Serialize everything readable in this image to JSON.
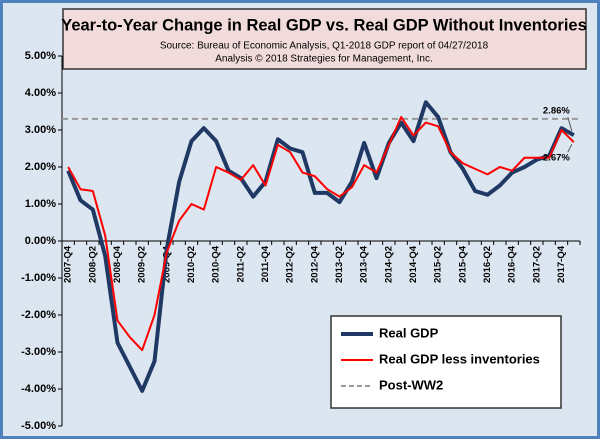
{
  "chart_data": {
    "type": "line",
    "title": "Year-to-Year Change in Real GDP vs. Real GDP Without Inventories",
    "subtitle": [
      "Source: Bureau of Economic Analysis, Q1-2018 GDP report of 04/27/2018",
      "Analysis © 2018 Strategies for Management, Inc."
    ],
    "categories": [
      "2007-Q4",
      null,
      "2008-Q2",
      null,
      "2008-Q4",
      null,
      "2009-Q2",
      null,
      "2009-Q4",
      null,
      "2010-Q2",
      null,
      "2010-Q4",
      null,
      "2011-Q2",
      null,
      "2011-Q4",
      null,
      "2012-Q2",
      null,
      "2012-Q4",
      null,
      "2013-Q2",
      null,
      "2013-Q4",
      null,
      "2014-Q2",
      null,
      "2014-Q4",
      null,
      "2015-Q2",
      null,
      "2015-Q4",
      null,
      "2016-Q2",
      null,
      "2016-Q4",
      null,
      "2017-Q2",
      null,
      "2017-Q4",
      null
    ],
    "series": [
      {
        "name": "Real GDP",
        "color": "#1f3864",
        "values": [
          1.9,
          1.1,
          0.85,
          -0.4,
          -2.75,
          -3.4,
          -4.05,
          -3.25,
          -0.2,
          1.6,
          2.7,
          3.05,
          2.7,
          1.9,
          1.7,
          1.2,
          1.6,
          2.75,
          2.5,
          2.4,
          1.3,
          1.3,
          1.05,
          1.6,
          2.65,
          1.7,
          2.65,
          3.2,
          2.7,
          3.75,
          3.35,
          2.4,
          1.95,
          1.35,
          1.25,
          1.5,
          1.85,
          2.0,
          2.2,
          2.3,
          3.05,
          2.86
        ],
        "value_labels": [
          null,
          null,
          null,
          null,
          null,
          null,
          null,
          null,
          null,
          null,
          null,
          null,
          null,
          null,
          null,
          null,
          null,
          null,
          null,
          null,
          null,
          null,
          null,
          null,
          null,
          null,
          null,
          null,
          null,
          null,
          null,
          null,
          null,
          null,
          null,
          null,
          null,
          null,
          null,
          null,
          null,
          "2.86%"
        ]
      },
      {
        "name": "Real GDP less inventories",
        "color": "#ff0000",
        "values": [
          2.0,
          1.4,
          1.35,
          0.15,
          -2.15,
          -2.6,
          -2.95,
          -2.0,
          -0.3,
          0.55,
          1.0,
          0.85,
          2.0,
          1.85,
          1.65,
          2.05,
          1.5,
          2.6,
          2.4,
          1.85,
          1.75,
          1.4,
          1.2,
          1.45,
          2.05,
          1.85,
          2.6,
          3.35,
          2.85,
          3.2,
          3.1,
          2.4,
          2.1,
          1.95,
          1.8,
          2.0,
          1.9,
          2.25,
          2.25,
          2.25,
          3.0,
          2.67
        ],
        "value_labels": [
          null,
          null,
          null,
          null,
          null,
          null,
          null,
          null,
          null,
          null,
          null,
          null,
          null,
          null,
          null,
          null,
          null,
          null,
          null,
          null,
          null,
          null,
          null,
          null,
          null,
          null,
          null,
          null,
          null,
          null,
          null,
          null,
          null,
          null,
          null,
          null,
          null,
          null,
          null,
          null,
          null,
          "2.67%"
        ]
      }
    ],
    "reference": {
      "name": "Post-WW2",
      "value": 3.3,
      "color": "#999999"
    },
    "ylim": [
      -5,
      5
    ],
    "yticks": [
      {
        "value": -5,
        "label": "-5.00%"
      },
      {
        "value": -4,
        "label": "-4.00%"
      },
      {
        "value": -3,
        "label": "-3.00%"
      },
      {
        "value": -2,
        "label": "-2.00%"
      },
      {
        "value": -1,
        "label": "-1.00%"
      },
      {
        "value": 0,
        "label": "0.00%"
      },
      {
        "value": 1,
        "label": "1.00%"
      },
      {
        "value": 2,
        "label": "2.00%"
      },
      {
        "value": 3,
        "label": "3.00%"
      },
      {
        "value": 4,
        "label": "4.00%"
      },
      {
        "value": 5,
        "label": "5.00%"
      }
    ],
    "legend": "lower right"
  }
}
